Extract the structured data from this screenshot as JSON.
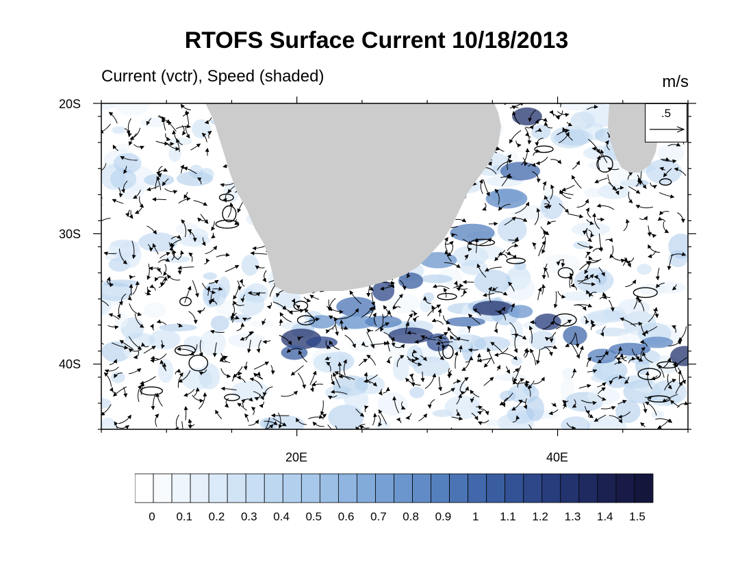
{
  "title": "RTOFS Surface Current 10/18/2013",
  "subtitle": "Current (vctr), Speed (shaded)",
  "units": "m/s",
  "reference_vector": {
    "label": ".5",
    "value": 0.5
  },
  "map": {
    "lat_range": [
      -45,
      -20
    ],
    "lon_range": [
      5,
      50
    ],
    "land_color": "#cccccc",
    "ocean_base_color": "#ffffff",
    "vector_color": "#000000",
    "lat_ticks": [
      {
        "value": -20,
        "label": "20S"
      },
      {
        "value": -30,
        "label": "30S"
      },
      {
        "value": -40,
        "label": "40S"
      }
    ],
    "lon_ticks": [
      {
        "value": 20,
        "label": "20E"
      },
      {
        "value": 40,
        "label": "40E"
      }
    ]
  },
  "colorbar": {
    "labels": [
      "0",
      "0.1",
      "0.2",
      "0.3",
      "0.4",
      "0.5",
      "0.6",
      "0.7",
      "0.8",
      "0.9",
      "1",
      "1.1",
      "1.2",
      "1.3",
      "1.4",
      "1.5"
    ],
    "colors": [
      "#ffffff",
      "#f7fbfe",
      "#eef5fc",
      "#e5f0fa",
      "#dbeaf8",
      "#d1e4f6",
      "#c7def4",
      "#bdd7f1",
      "#b2d0ee",
      "#a7c8ea",
      "#9bbfe5",
      "#8fb5e0",
      "#83abda",
      "#77a1d4",
      "#6b96cd",
      "#608bc6",
      "#5580be",
      "#4b74b5",
      "#4268ab",
      "#3a5da0",
      "#335295",
      "#2d4789",
      "#283d7c",
      "#23336e",
      "#1f2a60",
      "#1b2252",
      "#181b46",
      "#15163c"
    ]
  }
}
